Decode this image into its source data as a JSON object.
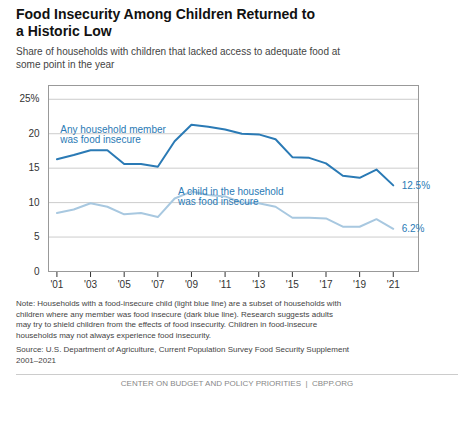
{
  "chart_data": {
    "type": "line",
    "title": "Food Insecurity Among Children Returned to\na Historic Low",
    "subtitle": "Share of households with children that lacked access to adequate food at\nsome point in the year",
    "x": [
      2001,
      2002,
      2003,
      2004,
      2005,
      2006,
      2007,
      2008,
      2009,
      2010,
      2011,
      2012,
      2013,
      2014,
      2015,
      2016,
      2017,
      2018,
      2019,
      2020,
      2021
    ],
    "series": [
      {
        "name": "Any household member\nwas food insecure",
        "color": "#2a7ab5",
        "values": [
          16.3,
          16.9,
          17.6,
          17.6,
          15.6,
          15.6,
          15.2,
          18.9,
          21.3,
          21.0,
          20.6,
          20.0,
          19.9,
          19.2,
          16.6,
          16.5,
          15.7,
          13.9,
          13.6,
          14.8,
          12.5
        ]
      },
      {
        "name": "A child in the household\nwas food insecure",
        "color": "#a8c8e0",
        "values": [
          8.5,
          9.0,
          9.9,
          9.4,
          8.3,
          8.5,
          7.9,
          10.6,
          11.6,
          11.1,
          10.9,
          10.0,
          9.9,
          9.4,
          7.8,
          7.8,
          7.7,
          6.5,
          6.5,
          7.6,
          6.2
        ]
      }
    ],
    "xlim": [
      2000.5,
      2022.5
    ],
    "xticks": [
      {
        "value": 2001,
        "label": "'01"
      },
      {
        "value": 2003,
        "label": "'03"
      },
      {
        "value": 2005,
        "label": "'05"
      },
      {
        "value": 2007,
        "label": "'07"
      },
      {
        "value": 2009,
        "label": "'09"
      },
      {
        "value": 2011,
        "label": "'11"
      },
      {
        "value": 2013,
        "label": "'13"
      },
      {
        "value": 2015,
        "label": "'15"
      },
      {
        "value": 2017,
        "label": "'17"
      },
      {
        "value": 2019,
        "label": "'19"
      },
      {
        "value": 2021,
        "label": "'21"
      }
    ],
    "ylim": [
      0,
      27
    ],
    "yticks": [
      0,
      5,
      10,
      15,
      20,
      {
        "value": 25,
        "label": "25%"
      }
    ],
    "grid": "y",
    "annotations": [
      {
        "text": "Any household member\nwas food insecure",
        "x": 2001.2,
        "y": 19.8,
        "color": "#2a7ab5"
      },
      {
        "text": "A child in the household\nwas food insecure",
        "x": 2008.2,
        "y": 10.8,
        "color": "#2a7ab5"
      },
      {
        "text": "12.5%",
        "x": 2021.5,
        "y": 12.5,
        "color": "#2a7ab5"
      },
      {
        "text": "6.2%",
        "x": 2021.5,
        "y": 6.2,
        "color": "#2a7ab5"
      }
    ],
    "note": "Note: Households with a food-insecure child (light blue line) are a subset of households with\nchildren where any member was food insecure (dark blue line). Research suggests adults\nmay try to shield children from the effects of food insecurity. Children in food-insecure\nhouseholds may not always experience food insecurity.",
    "source": "Source: U.S. Department of Agriculture, Current Population Survey Food Security Supplement\n2001–2021",
    "footer": "CENTER ON BUDGET AND POLICY PRIORITIES  |  CBPP.ORG"
  }
}
